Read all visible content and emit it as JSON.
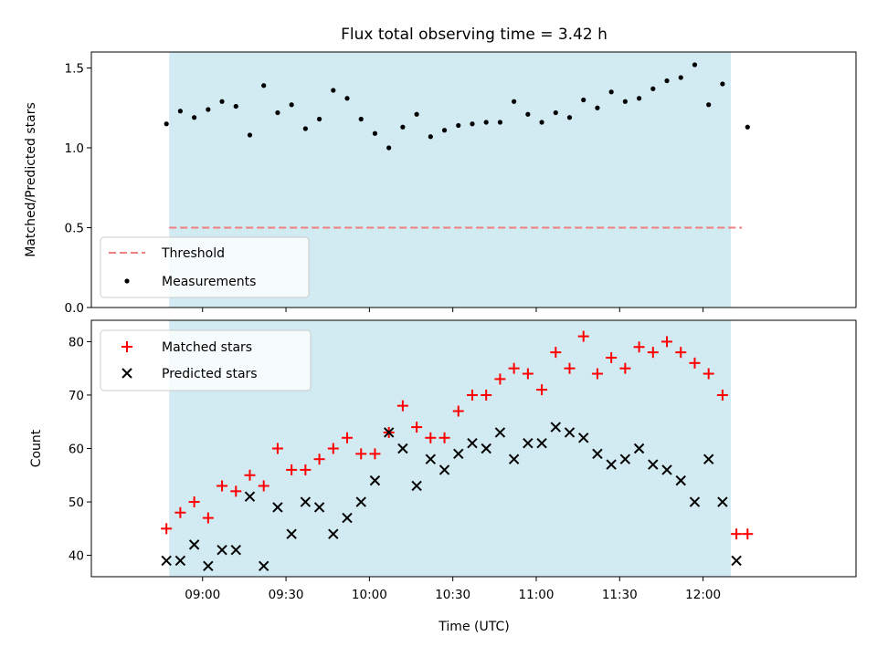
{
  "title": "Flux total observing time = 3.42 h",
  "colors": {
    "shade": "#add8e6",
    "threshold": "#f07f7f",
    "measurement": "#000000",
    "matched": "#ff0000",
    "predicted": "#000000"
  },
  "chart_data": [
    {
      "type": "scatter",
      "ylabel": "Matched/Predicted stars",
      "xlim": [
        "08:20",
        "12:55"
      ],
      "ylim": [
        0,
        1.6
      ],
      "yticks": [
        "0.0",
        "0.5",
        "1.0",
        "1.5"
      ],
      "shaded_interval": [
        "08:48",
        "12:10"
      ],
      "threshold": {
        "name": "Threshold",
        "value": 0.5,
        "x_range": [
          "08:48",
          "12:14"
        ]
      },
      "series": [
        {
          "name": "Measurements",
          "x": [
            "08:47",
            "08:52",
            "08:57",
            "09:02",
            "09:07",
            "09:12",
            "09:17",
            "09:22",
            "09:27",
            "09:32",
            "09:37",
            "09:42",
            "09:47",
            "09:52",
            "09:57",
            "10:02",
            "10:07",
            "10:12",
            "10:17",
            "10:22",
            "10:27",
            "10:32",
            "10:37",
            "10:42",
            "10:47",
            "10:52",
            "10:57",
            "11:02",
            "11:07",
            "11:12",
            "11:17",
            "11:22",
            "11:27",
            "11:32",
            "11:37",
            "11:42",
            "11:47",
            "11:52",
            "11:57",
            "12:02",
            "12:07",
            "12:16"
          ],
          "y": [
            1.15,
            1.23,
            1.19,
            1.24,
            1.29,
            1.26,
            1.08,
            1.39,
            1.22,
            1.27,
            1.12,
            1.18,
            1.36,
            1.31,
            1.18,
            1.09,
            1.0,
            1.13,
            1.21,
            1.07,
            1.11,
            1.14,
            1.15,
            1.16,
            1.16,
            1.29,
            1.21,
            1.16,
            1.22,
            1.19,
            1.3,
            1.25,
            1.35,
            1.29,
            1.31,
            1.37,
            1.42,
            1.44,
            1.52,
            1.27,
            1.4,
            1.13
          ]
        }
      ]
    },
    {
      "type": "scatter",
      "xlabel": "Time (UTC)",
      "ylabel": "Count",
      "xlim": [
        "08:20",
        "12:55"
      ],
      "ylim": [
        36,
        84
      ],
      "yticks": [
        "40",
        "50",
        "60",
        "70",
        "80"
      ],
      "xticks": [
        "09:00",
        "09:30",
        "10:00",
        "10:30",
        "11:00",
        "11:30",
        "12:00"
      ],
      "shaded_interval": [
        "08:48",
        "12:10"
      ],
      "series": [
        {
          "name": "Matched stars",
          "x": [
            "08:47",
            "08:52",
            "08:57",
            "09:02",
            "09:07",
            "09:12",
            "09:17",
            "09:22",
            "09:27",
            "09:32",
            "09:37",
            "09:42",
            "09:47",
            "09:52",
            "09:57",
            "10:02",
            "10:07",
            "10:12",
            "10:17",
            "10:22",
            "10:27",
            "10:32",
            "10:37",
            "10:42",
            "10:47",
            "10:52",
            "10:57",
            "11:02",
            "11:07",
            "11:12",
            "11:17",
            "11:22",
            "11:27",
            "11:32",
            "11:37",
            "11:42",
            "11:47",
            "11:52",
            "11:57",
            "12:02",
            "12:07",
            "12:12",
            "12:16"
          ],
          "y": [
            45,
            48,
            50,
            47,
            53,
            52,
            55,
            53,
            60,
            56,
            56,
            58,
            60,
            62,
            59,
            59,
            63,
            68,
            64,
            62,
            62,
            67,
            70,
            70,
            73,
            75,
            74,
            71,
            78,
            75,
            81,
            74,
            77,
            75,
            79,
            78,
            80,
            78,
            76,
            74,
            70,
            44,
            44
          ]
        },
        {
          "name": "Predicted stars",
          "x": [
            "08:47",
            "08:52",
            "08:57",
            "09:02",
            "09:07",
            "09:12",
            "09:17",
            "09:22",
            "09:27",
            "09:32",
            "09:37",
            "09:42",
            "09:47",
            "09:52",
            "09:57",
            "10:02",
            "10:07",
            "10:12",
            "10:17",
            "10:22",
            "10:27",
            "10:32",
            "10:37",
            "10:42",
            "10:47",
            "10:52",
            "10:57",
            "11:02",
            "11:07",
            "11:12",
            "11:17",
            "11:22",
            "11:27",
            "11:32",
            "11:37",
            "11:42",
            "11:47",
            "11:52",
            "11:57",
            "12:02",
            "12:07",
            "12:12"
          ],
          "y": [
            39,
            39,
            42,
            38,
            41,
            41,
            51,
            38,
            49,
            44,
            50,
            49,
            44,
            47,
            50,
            54,
            63,
            60,
            53,
            58,
            56,
            59,
            61,
            60,
            63,
            58,
            61,
            61,
            64,
            63,
            62,
            59,
            57,
            58,
            60,
            57,
            56,
            54,
            50,
            58,
            50,
            39
          ]
        }
      ]
    }
  ]
}
